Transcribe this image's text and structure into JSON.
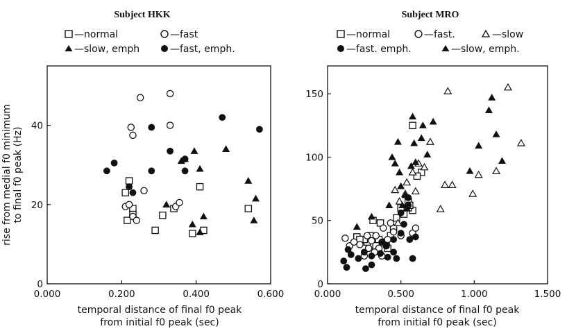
{
  "chart_data": [
    {
      "type": "scatter",
      "title": "Subject HKK",
      "xlabel_line1": "temporal distance of final f0 peak",
      "xlabel_line2": "from initial f0 peak (sec)",
      "ylabel_line1": "rise from medial f0 minimum",
      "ylabel_line2": "to final f0 peak (Hz)",
      "xlim": [
        0,
        0.6
      ],
      "ylim": [
        0,
        55
      ],
      "xticks": [
        0,
        0.2,
        0.4,
        0.6
      ],
      "xtick_labels": [
        "0.000",
        "0.200",
        "0.400",
        "0.600"
      ],
      "yticks": [
        0,
        20,
        40
      ],
      "ytick_labels": [
        "0",
        "20",
        "40"
      ],
      "grid": false,
      "legend_position": "top",
      "series": [
        {
          "name": "normal",
          "marker": "open-square",
          "points": [
            [
              0.215,
              16
            ],
            [
              0.21,
              23
            ],
            [
              0.22,
              26
            ],
            [
              0.23,
              19
            ],
            [
              0.23,
              17.5
            ],
            [
              0.29,
              13.5
            ],
            [
              0.31,
              17.3
            ],
            [
              0.34,
              19
            ],
            [
              0.39,
              12.7
            ],
            [
              0.41,
              24.5
            ],
            [
              0.42,
              13.5
            ],
            [
              0.54,
              19
            ]
          ]
        },
        {
          "name": "fast",
          "marker": "open-circle",
          "points": [
            [
              0.25,
              47
            ],
            [
              0.33,
              48
            ],
            [
              0.225,
              39.5
            ],
            [
              0.23,
              37.5
            ],
            [
              0.33,
              40
            ],
            [
              0.21,
              19.5
            ],
            [
              0.22,
              20
            ],
            [
              0.23,
              17
            ],
            [
              0.24,
              16
            ],
            [
              0.26,
              23.5
            ],
            [
              0.345,
              19.5
            ],
            [
              0.355,
              20.5
            ]
          ]
        },
        {
          "name": "slow, emph",
          "marker": "filled-triangle",
          "points": [
            [
              0.32,
              20
            ],
            [
              0.36,
              31
            ],
            [
              0.37,
              31.5
            ],
            [
              0.395,
              33.5
            ],
            [
              0.41,
              29
            ],
            [
              0.39,
              15
            ],
            [
              0.41,
              13
            ],
            [
              0.42,
              17
            ],
            [
              0.48,
              34
            ],
            [
              0.54,
              26
            ],
            [
              0.56,
              21.5
            ],
            [
              0.555,
              16
            ]
          ]
        },
        {
          "name": "fast, emph.",
          "marker": "filled-circle",
          "points": [
            [
              0.16,
              28.5
            ],
            [
              0.18,
              30.5
            ],
            [
              0.22,
              24.5
            ],
            [
              0.23,
              23
            ],
            [
              0.28,
              39.5
            ],
            [
              0.28,
              28.5
            ],
            [
              0.33,
              33.5
            ],
            [
              0.37,
              31.5
            ],
            [
              0.37,
              28.5
            ],
            [
              0.47,
              42
            ],
            [
              0.57,
              39
            ]
          ]
        }
      ]
    },
    {
      "type": "scatter",
      "title": "Subject MRO",
      "xlabel_line1": "temporal distance of final f0 peak",
      "xlabel_line2": "from initial f0 peak (sec)",
      "xlim": [
        0,
        1.5
      ],
      "ylim": [
        0,
        172
      ],
      "xticks": [
        0,
        0.5,
        1.0,
        1.5
      ],
      "xtick_labels": [
        "0.000",
        "0.500",
        "1.000",
        "1.500"
      ],
      "yticks": [
        0,
        50,
        100,
        150
      ],
      "ytick_labels": [
        "0",
        "50",
        "100",
        "150"
      ],
      "grid": false,
      "legend_position": "top",
      "series": [
        {
          "name": "normal",
          "marker": "open-square",
          "points": [
            [
              0.58,
              125
            ],
            [
              0.64,
              88
            ],
            [
              0.61,
              85
            ],
            [
              0.55,
              65
            ],
            [
              0.5,
              60
            ],
            [
              0.52,
              55
            ],
            [
              0.47,
              52
            ],
            [
              0.45,
              44
            ],
            [
              0.43,
              38
            ],
            [
              0.36,
              48
            ],
            [
              0.31,
              50
            ],
            [
              0.4,
              33
            ],
            [
              0.35,
              35
            ],
            [
              0.29,
              38
            ],
            [
              0.27,
              33
            ],
            [
              0.25,
              35
            ],
            [
              0.2,
              37
            ],
            [
              0.22,
              35
            ],
            [
              0.33,
              30
            ],
            [
              0.41,
              28
            ],
            [
              0.58,
              58
            ],
            [
              0.55,
              60
            ],
            [
              0.56,
              62
            ]
          ]
        },
        {
          "name": "fast.",
          "marker": "open-circle",
          "points": [
            [
              0.12,
              36
            ],
            [
              0.15,
              30
            ],
            [
              0.18,
              33
            ],
            [
              0.22,
              31
            ],
            [
              0.25,
              22
            ],
            [
              0.28,
              28
            ],
            [
              0.3,
              34
            ],
            [
              0.33,
              38
            ],
            [
              0.37,
              22
            ],
            [
              0.35,
              28
            ],
            [
              0.41,
              35
            ],
            [
              0.45,
              41
            ],
            [
              0.43,
              48
            ],
            [
              0.58,
              40
            ],
            [
              0.6,
              44
            ],
            [
              0.5,
              38
            ],
            [
              0.38,
              44
            ],
            [
              0.4,
              30
            ],
            [
              0.32,
              25
            ],
            [
              0.27,
              38
            ]
          ]
        },
        {
          "name": "slow",
          "marker": "open-triangle",
          "points": [
            [
              1.23,
              155
            ],
            [
              0.82,
              152
            ],
            [
              1.32,
              111
            ],
            [
              0.85,
              78
            ],
            [
              0.8,
              78
            ],
            [
              0.77,
              59
            ],
            [
              0.99,
              71
            ],
            [
              1.03,
              86
            ],
            [
              1.15,
              89
            ],
            [
              0.7,
              112
            ],
            [
              0.66,
              92
            ],
            [
              0.6,
              73
            ],
            [
              0.54,
              80
            ],
            [
              0.46,
              74
            ],
            [
              0.49,
              65
            ],
            [
              0.53,
              71
            ],
            [
              0.62,
              95
            ],
            [
              0.58,
              88
            ],
            [
              0.48,
              48
            ]
          ]
        },
        {
          "name": "fast. emph.",
          "marker": "filled-circle",
          "points": [
            [
              0.11,
              18
            ],
            [
              0.13,
              13
            ],
            [
              0.14,
              27
            ],
            [
              0.16,
              23
            ],
            [
              0.21,
              20
            ],
            [
              0.25,
              25
            ],
            [
              0.26,
              12
            ],
            [
              0.3,
              15
            ],
            [
              0.3,
              22
            ],
            [
              0.36,
              24
            ],
            [
              0.37,
              33
            ],
            [
              0.4,
              30
            ],
            [
              0.41,
              21
            ],
            [
              0.45,
              25
            ],
            [
              0.47,
              20
            ],
            [
              0.5,
              40
            ],
            [
              0.52,
              47
            ],
            [
              0.55,
              68
            ],
            [
              0.56,
              35
            ],
            [
              0.58,
              20
            ],
            [
              0.6,
              37
            ],
            [
              0.45,
              35
            ],
            [
              0.55,
              62
            ],
            [
              0.5,
              56
            ]
          ]
        },
        {
          "name": "slow, emph.",
          "marker": "filled-triangle",
          "points": [
            [
              1.12,
              147
            ],
            [
              1.1,
              137
            ],
            [
              1.15,
              118
            ],
            [
              1.19,
              97
            ],
            [
              1.03,
              109
            ],
            [
              0.97,
              89
            ],
            [
              0.72,
              128
            ],
            [
              0.65,
              125
            ],
            [
              0.58,
              132
            ],
            [
              0.59,
              111
            ],
            [
              0.64,
              115
            ],
            [
              0.68,
              102
            ],
            [
              0.6,
              96
            ],
            [
              0.57,
              93
            ],
            [
              0.48,
              112
            ],
            [
              0.44,
              100
            ],
            [
              0.46,
              95
            ],
            [
              0.49,
              88
            ],
            [
              0.51,
              62
            ],
            [
              0.54,
              60
            ],
            [
              0.53,
              70
            ],
            [
              0.3,
              53
            ],
            [
              0.2,
              45
            ],
            [
              0.42,
              62
            ],
            [
              0.5,
              77
            ]
          ]
        }
      ]
    }
  ],
  "legends": [
    {
      "rows": [
        [
          {
            "marker": "open-square",
            "label": "—normal"
          },
          {
            "marker": "open-circle",
            "label": "—fast"
          }
        ],
        [
          {
            "marker": "filled-triangle",
            "label": "—slow, emph"
          },
          {
            "marker": "filled-circle",
            "label": "—fast, emph."
          }
        ]
      ]
    },
    {
      "rows": [
        [
          {
            "marker": "open-square",
            "label": "—normal"
          },
          {
            "marker": "open-circle",
            "label": "—fast."
          },
          {
            "marker": "open-triangle",
            "label": "—slow"
          }
        ],
        [
          {
            "marker": "filled-circle",
            "label": "—fast. emph."
          },
          {
            "marker": "filled-triangle",
            "label": "—slow, emph."
          }
        ]
      ]
    }
  ]
}
